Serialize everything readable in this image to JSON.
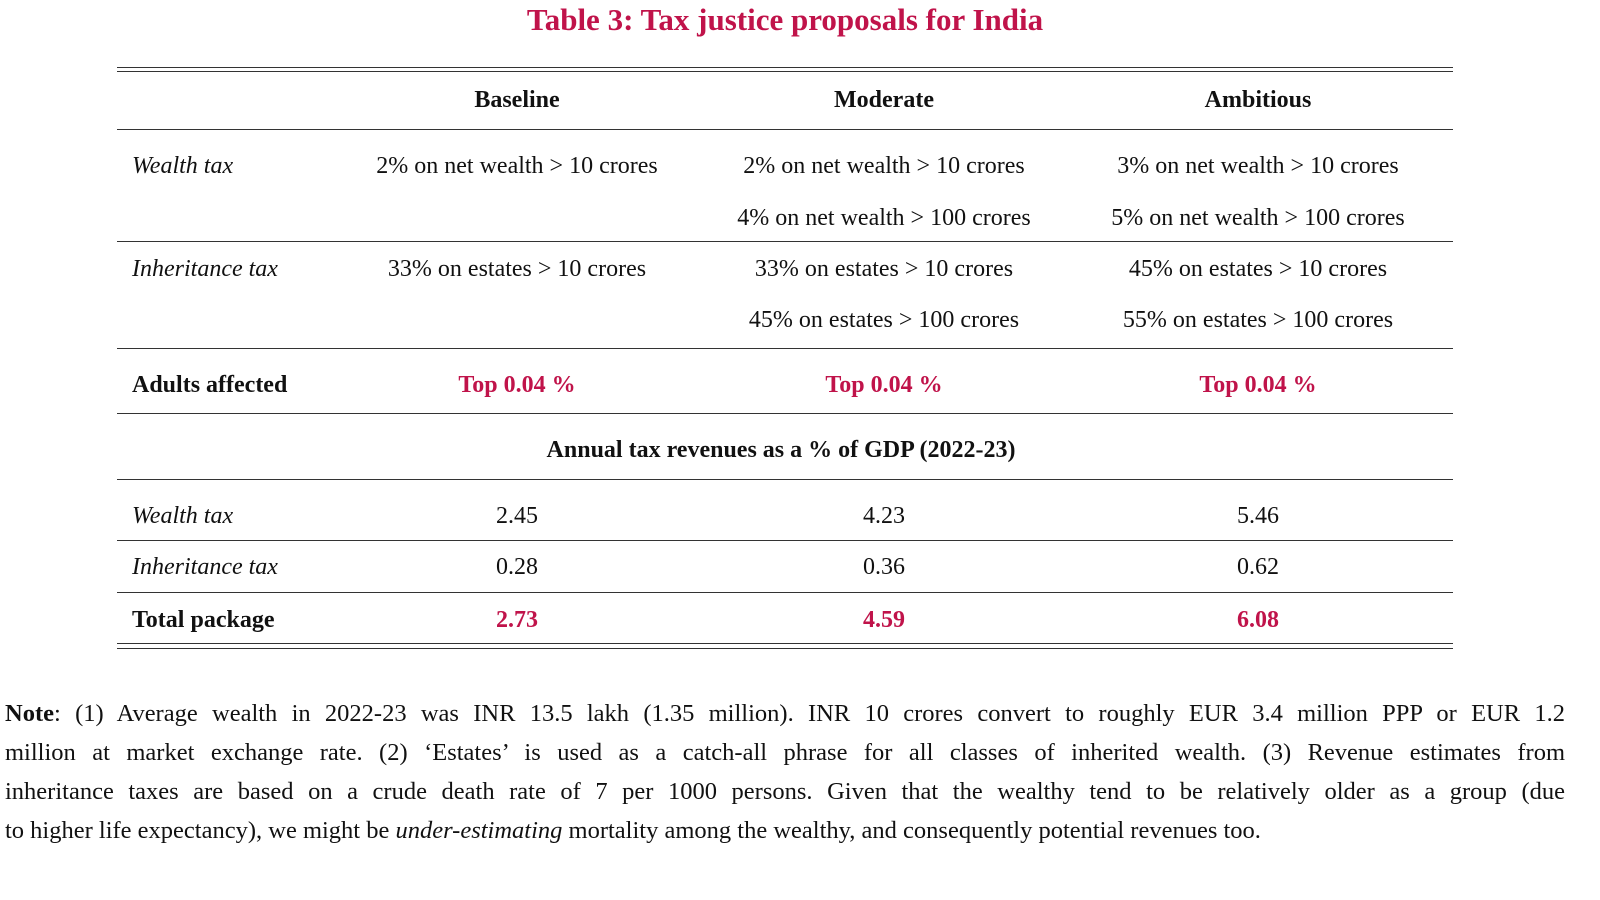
{
  "title": "Table 3: Tax justice proposals for India",
  "columns": [
    "Baseline",
    "Moderate",
    "Ambitious"
  ],
  "proposals": [
    {
      "label": "Wealth tax",
      "cells": [
        [
          "2% on net wealth > 10 crores"
        ],
        [
          "2% on net wealth > 10 crores",
          "4% on net wealth > 100 crores"
        ],
        [
          "3% on net wealth > 10 crores",
          "5% on net wealth > 100 crores"
        ]
      ]
    },
    {
      "label": "Inheritance tax",
      "cells": [
        [
          "33% on estates > 10 crores"
        ],
        [
          "33% on estates > 10 crores",
          "45% on estates > 100 crores"
        ],
        [
          "45% on estates > 10 crores",
          "55% on estates > 100 crores"
        ]
      ]
    }
  ],
  "adults": {
    "label": "Adults affected",
    "values": [
      "Top 0.04 %",
      "Top 0.04 %",
      "Top 0.04 %"
    ]
  },
  "section_header": "Annual tax revenues as a % of GDP (2022-23)",
  "revenues": [
    {
      "label": "Wealth tax",
      "values": [
        "2.45",
        "4.23",
        "5.46"
      ]
    },
    {
      "label": "Inheritance tax",
      "values": [
        "0.28",
        "0.36",
        "0.62"
      ]
    }
  ],
  "total": {
    "label": "Total package",
    "values": [
      "2.73",
      "4.59",
      "6.08"
    ]
  },
  "accent_color": "#c0134a",
  "note": {
    "label": "Note",
    "line1": ": (1) Average wealth in 2022-23 was INR 13.5 lakh (1.35 million). INR 10 crores convert to roughly EUR 3.4 million PPP or EUR 1.2",
    "line2": "million at market exchange rate. (2) ‘Estates’ is used as a catch-all phrase for all classes of inherited wealth. (3) Revenue estimates from",
    "line3": "inheritance taxes are based on a crude death rate of 7 per 1000 persons. Given that the wealthy tend to be relatively older as a group (due",
    "line4_pre": "to higher life expectancy), we might be ",
    "line4_italic": "under-estimating",
    "line4_post": " mortality among the wealthy, and consequently potential revenues too."
  }
}
